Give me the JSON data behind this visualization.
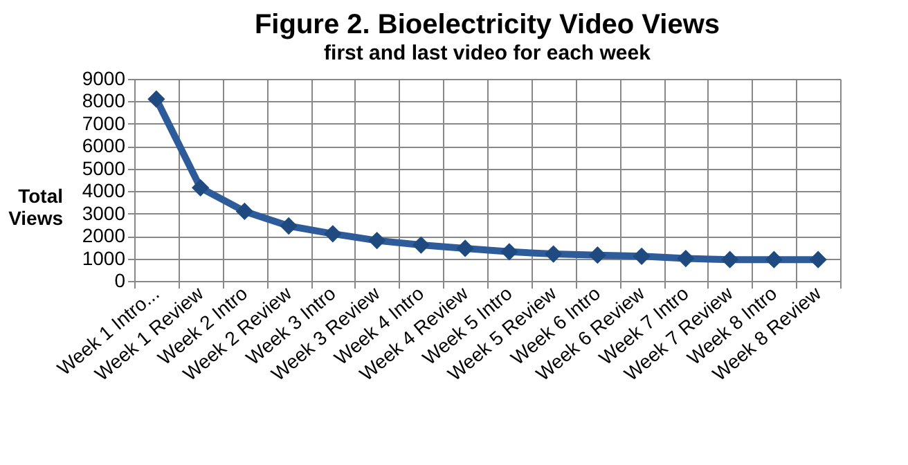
{
  "chart_data": {
    "type": "line",
    "title": "Figure 2. Bioelectricity Video Views",
    "subtitle": "first and last video for each week",
    "ylabel": "Total Views",
    "categories": [
      "Week 1 Intro...",
      "Week 1 Review",
      "Week 2 Intro",
      "Week 2 Review",
      "Week 3 Intro",
      "Week 3 Review",
      "Week 4 Intro",
      "Week 4 Review",
      "Week 5 Intro",
      "Week 5 Review",
      "Week 6 Intro",
      "Week 6 Review",
      "Week 7 Intro",
      "Week 7 Review",
      "Week 8 Intro",
      "Week 8 Review"
    ],
    "series": [
      {
        "color": "#2e5c9a",
        "values": [
          8100,
          4150,
          3100,
          2450,
          2100,
          1800,
          1600,
          1450,
          1300,
          1200,
          1150,
          1100,
          1000,
          950,
          950,
          950
        ]
      }
    ],
    "ylim": [
      0,
      9000
    ],
    "yticks": [
      0,
      1000,
      2000,
      3000,
      4000,
      5000,
      6000,
      7000,
      8000,
      9000
    ],
    "grid": true,
    "marker": "diamond",
    "line_style": "solid"
  }
}
